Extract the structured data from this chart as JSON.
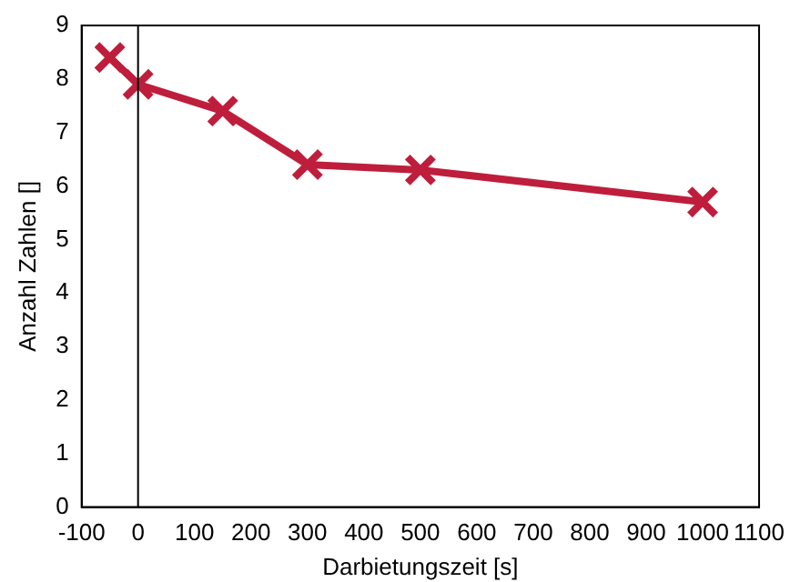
{
  "chart_data": {
    "type": "line",
    "xlabel": "Darbietungszeit [s]",
    "ylabel": "Anzahl Zahlen []",
    "x": [
      -50,
      0,
      150,
      300,
      500,
      1000
    ],
    "series": [
      {
        "color": "#be1e3c",
        "values": [
          8.4,
          7.9,
          7.4,
          6.4,
          6.3,
          5.7
        ]
      }
    ],
    "xlim": [
      -100,
      1100
    ],
    "xticks": [
      -100,
      0,
      100,
      200,
      300,
      400,
      500,
      600,
      700,
      800,
      900,
      1000,
      1100
    ],
    "ylim": [
      0,
      9
    ],
    "yticks": [
      0,
      1,
      2,
      3,
      4,
      5,
      6,
      7,
      8,
      9
    ],
    "ref_lines": [
      {
        "axis": "x",
        "value": 0,
        "color": "#000000"
      }
    ],
    "grid": false,
    "legend": false,
    "marker": "cross",
    "line_style": "solid"
  }
}
